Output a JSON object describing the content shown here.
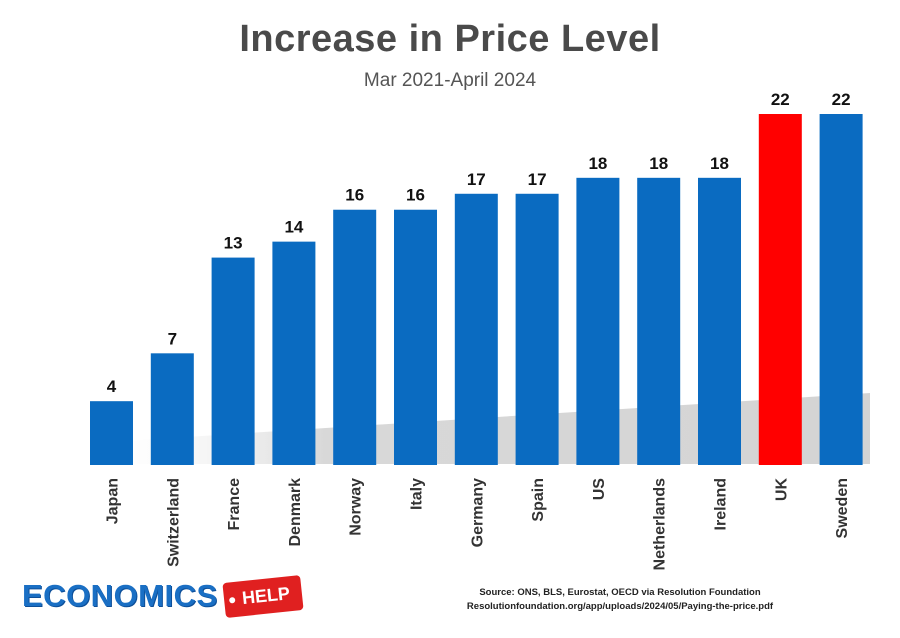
{
  "chart_data": {
    "type": "bar",
    "title": "Increase in Price Level",
    "subtitle": "Mar 2021-April 2024",
    "categories": [
      "Japan",
      "Switzerland",
      "France",
      "Denmark",
      "Norway",
      "Italy",
      "Germany",
      "Spain",
      "US",
      "Netherlands",
      "Ireland",
      "UK",
      "Sweden"
    ],
    "values": [
      4,
      7,
      13,
      14,
      16,
      16,
      17,
      17,
      18,
      18,
      18,
      22,
      22
    ],
    "ylim": [
      0,
      22
    ],
    "grid": false,
    "data_labels": true,
    "colors": {
      "default": "#0a6bc1",
      "highlight": "#ff0000",
      "highlight_category": "UK"
    }
  },
  "footer": {
    "logo_word": "ECONOMICS",
    "logo_tag": "HELP",
    "source_line_1": "Source: ONS, BLS, Eurostat, OECD via Resolution Foundation",
    "source_line_2": "Resolutionfoundation.org/app/uploads/2024/05/Paying-the-price.pdf"
  }
}
